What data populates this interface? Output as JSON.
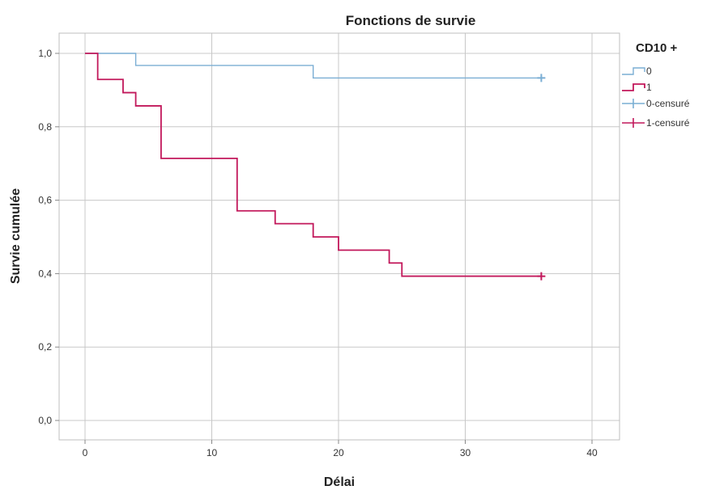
{
  "chart_data": {
    "type": "line",
    "step": true,
    "title": "Fonctions de survie",
    "xlabel": "Délai",
    "ylabel": "Survie cumulée",
    "xlim": [
      0,
      40
    ],
    "ylim": [
      0,
      1
    ],
    "x_ticks": [
      0,
      10,
      20,
      30,
      40
    ],
    "y_ticks": [
      0,
      0.2,
      0.4,
      0.6,
      0.8,
      1.0
    ],
    "x_tick_labels": [
      "0",
      "10",
      "20",
      "30",
      "40"
    ],
    "y_tick_labels": [
      "0,0",
      "0,2",
      "0,4",
      "0,6",
      "0,8",
      "1,0"
    ],
    "grid": true,
    "legend_position": "top-right",
    "legend": {
      "title": "CD10 +",
      "entries": [
        {
          "label": "0",
          "kind": "line",
          "color": "#7aaed4"
        },
        {
          "label": "1",
          "kind": "line",
          "color": "#c2185b"
        },
        {
          "label": "0-censuré",
          "kind": "censor",
          "color": "#7aaed4"
        },
        {
          "label": "1-censuré",
          "kind": "censor",
          "color": "#c2185b"
        }
      ]
    },
    "series": [
      {
        "name": "0",
        "color": "#7aaed4",
        "x": [
          0,
          4,
          18,
          36
        ],
        "y": [
          1.0,
          0.967,
          0.933,
          0.933
        ],
        "censored": [
          {
            "x": 36,
            "y": 0.933
          }
        ]
      },
      {
        "name": "1",
        "color": "#c2185b",
        "x": [
          0,
          1,
          3,
          4,
          6,
          12,
          15,
          18,
          20,
          24,
          25,
          36
        ],
        "y": [
          1.0,
          0.929,
          0.893,
          0.857,
          0.714,
          0.571,
          0.536,
          0.5,
          0.464,
          0.429,
          0.393,
          0.393
        ],
        "censored": [
          {
            "x": 36,
            "y": 0.393
          }
        ]
      }
    ]
  }
}
